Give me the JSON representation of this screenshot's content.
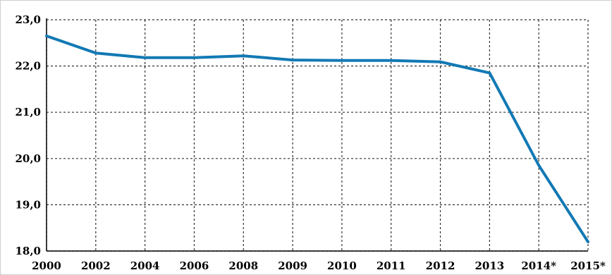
{
  "chart_data": {
    "type": "line",
    "title": "",
    "xlabel": "",
    "ylabel": "",
    "categories": [
      "2000",
      "2002",
      "2004",
      "2006",
      "2008",
      "2009",
      "2010",
      "2011",
      "2012",
      "2013",
      "2014*",
      "2015*"
    ],
    "series": [
      {
        "values": [
          22.65,
          22.28,
          22.18,
          22.18,
          22.22,
          22.13,
          22.12,
          22.12,
          22.09,
          21.85,
          19.85,
          18.2
        ],
        "color": "#1279b4"
      }
    ],
    "ylim": [
      18.0,
      23.0
    ],
    "yticks": [
      {
        "value": 23.0,
        "label": "23,0"
      },
      {
        "value": 22.0,
        "label": "22,0"
      },
      {
        "value": 21.0,
        "label": "21,0"
      },
      {
        "value": 20.0,
        "label": "20,0"
      },
      {
        "value": 19.0,
        "label": "19,0"
      },
      {
        "value": 18.0,
        "label": "18,0"
      }
    ],
    "grid": true,
    "grid_style": "dotted",
    "legend": false
  }
}
